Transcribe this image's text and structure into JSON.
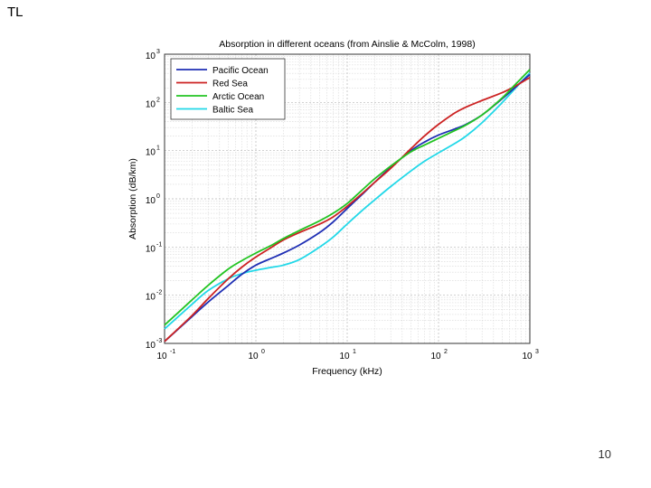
{
  "slide": {
    "title": "TL",
    "page_number": "10"
  },
  "chart_data": {
    "type": "line",
    "title": "Absorption in different oceans (from Ainslie & McColm, 1998)",
    "xlabel": "Frequency (kHz)",
    "ylabel": "Absorption (dB/km)",
    "xscale": "log",
    "yscale": "log",
    "xlim": [
      0.1,
      1000
    ],
    "ylim": [
      0.001,
      1000
    ],
    "x_ticks": [
      {
        "base": "10",
        "exp": "-1",
        "value": 0.1
      },
      {
        "base": "10",
        "exp": "0",
        "value": 1
      },
      {
        "base": "10",
        "exp": "1",
        "value": 10
      },
      {
        "base": "10",
        "exp": "2",
        "value": 100
      },
      {
        "base": "10",
        "exp": "3",
        "value": 1000
      }
    ],
    "y_ticks": [
      {
        "base": "10",
        "exp": "-3",
        "value": 0.001
      },
      {
        "base": "10",
        "exp": "-2",
        "value": 0.01
      },
      {
        "base": "10",
        "exp": "-1",
        "value": 0.1
      },
      {
        "base": "10",
        "exp": "0",
        "value": 1
      },
      {
        "base": "10",
        "exp": "1",
        "value": 10
      },
      {
        "base": "10",
        "exp": "2",
        "value": 100
      },
      {
        "base": "10",
        "exp": "3",
        "value": 1000
      }
    ],
    "grid": true,
    "legend_position": "top-left",
    "series": [
      {
        "name": "Pacific Ocean",
        "color": "#1f2fb4",
        "x": [
          0.1,
          0.2,
          0.3,
          0.5,
          0.7,
          1,
          1.5,
          2,
          3,
          5,
          7,
          10,
          15,
          20,
          30,
          50,
          70,
          100,
          150,
          200,
          300,
          500,
          700,
          1000
        ],
        "y": [
          0.0011,
          0.0036,
          0.0072,
          0.016,
          0.027,
          0.042,
          0.059,
          0.075,
          0.11,
          0.2,
          0.33,
          0.63,
          1.3,
          2.2,
          4.5,
          10,
          15,
          21,
          28,
          35,
          55,
          120,
          210,
          380
        ]
      },
      {
        "name": "Red Sea",
        "color": "#cc2222",
        "x": [
          0.1,
          0.2,
          0.3,
          0.5,
          0.7,
          1,
          1.5,
          2,
          3,
          5,
          7,
          10,
          15,
          20,
          30,
          50,
          70,
          100,
          150,
          200,
          300,
          500,
          700,
          1000
        ],
        "y": [
          0.0011,
          0.0038,
          0.0085,
          0.022,
          0.038,
          0.062,
          0.1,
          0.14,
          0.2,
          0.3,
          0.42,
          0.7,
          1.35,
          2.2,
          4.3,
          11,
          20,
          35,
          60,
          80,
          110,
          160,
          220,
          330
        ]
      },
      {
        "name": "Arctic Ocean",
        "color": "#22c422",
        "x": [
          0.1,
          0.2,
          0.3,
          0.5,
          0.7,
          1,
          1.5,
          2,
          3,
          5,
          7,
          10,
          15,
          20,
          30,
          50,
          70,
          100,
          150,
          200,
          300,
          500,
          700,
          1000
        ],
        "y": [
          0.0024,
          0.008,
          0.016,
          0.035,
          0.052,
          0.075,
          0.11,
          0.15,
          0.22,
          0.35,
          0.5,
          0.8,
          1.6,
          2.6,
          4.8,
          9.5,
          13,
          18,
          26,
          34,
          55,
          125,
          240,
          480
        ]
      },
      {
        "name": "Baltic Sea",
        "color": "#22d8e8",
        "x": [
          0.1,
          0.2,
          0.3,
          0.5,
          0.7,
          1,
          1.5,
          2,
          3,
          5,
          7,
          10,
          15,
          20,
          30,
          50,
          70,
          100,
          150,
          200,
          300,
          500,
          700,
          1000
        ],
        "y": [
          0.002,
          0.0065,
          0.0125,
          0.022,
          0.028,
          0.033,
          0.038,
          0.042,
          0.055,
          0.1,
          0.16,
          0.3,
          0.6,
          0.95,
          1.8,
          3.8,
          6,
          9,
          14,
          20,
          38,
          100,
          200,
          410
        ]
      }
    ]
  }
}
